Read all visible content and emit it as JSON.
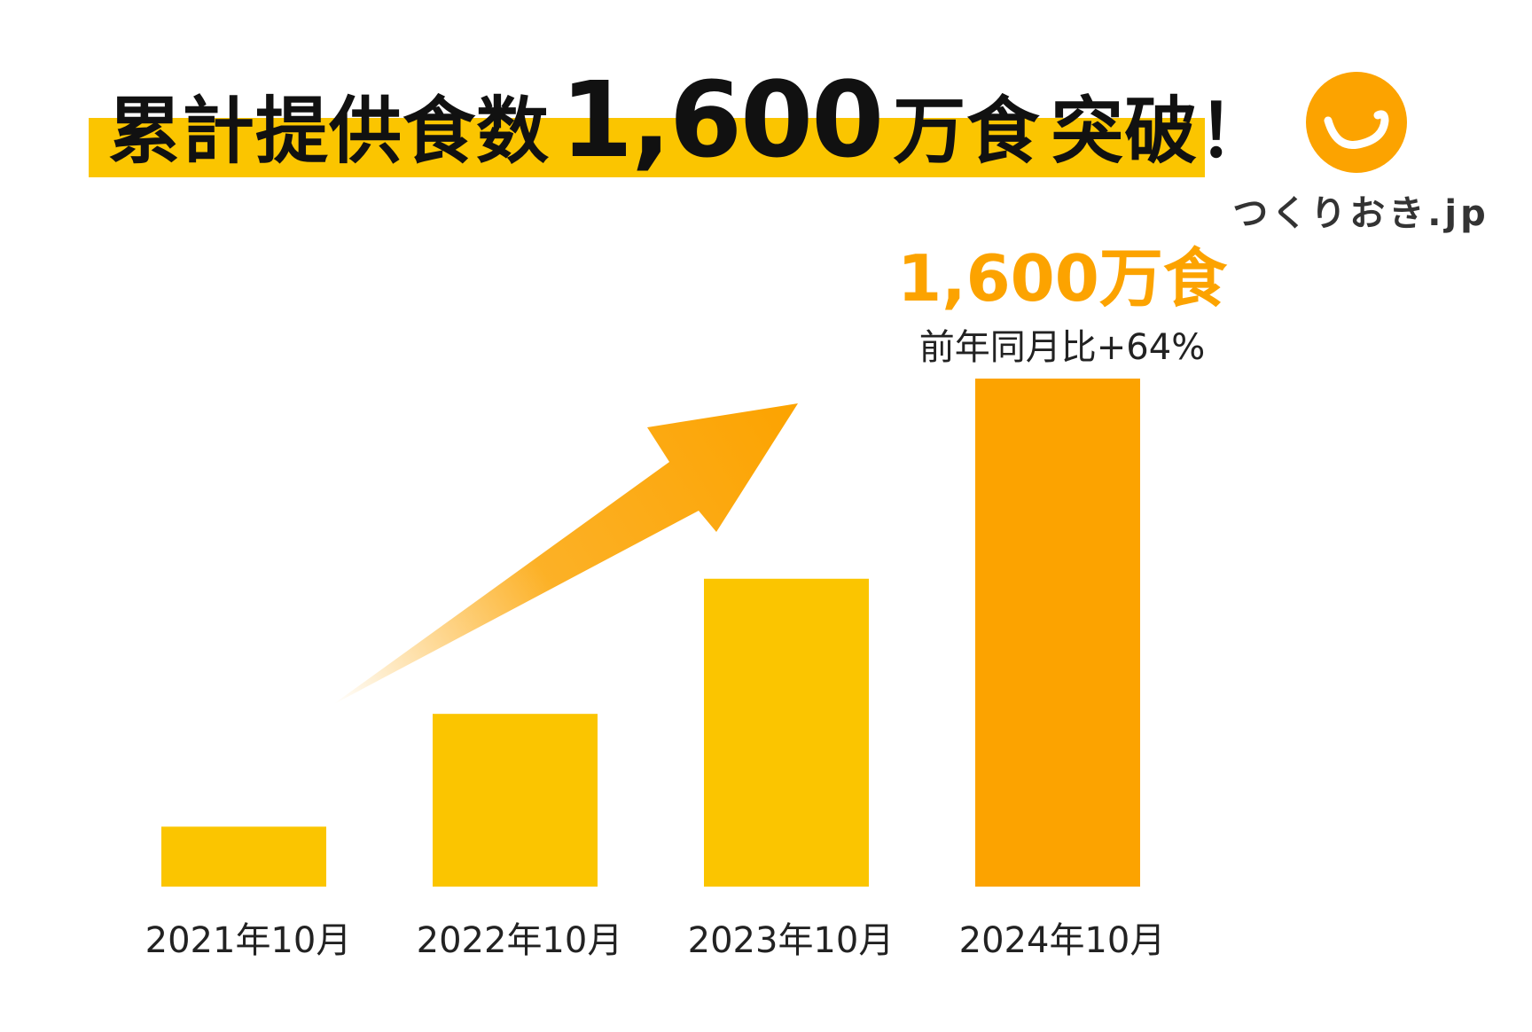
{
  "title": {
    "part1": "累計提供食数",
    "number": "1,600",
    "part2": "万食",
    "part3": "突破！"
  },
  "logo": {
    "text": "つくりおき.jp",
    "icon": "smile-icon",
    "color": "#fca300"
  },
  "highlight": {
    "value": "1,600万食",
    "change": "前年同月比+64%"
  },
  "colors": {
    "bar": "#fbc500",
    "bar_highlight": "#fca300",
    "band": "#fbc500",
    "arrow": "#fca300"
  },
  "chart_data": {
    "type": "bar",
    "categories": [
      "2021年10月",
      "2022年10月",
      "2023年10月",
      "2024年10月"
    ],
    "values": [
      118,
      340,
      606,
      1000
    ],
    "ylim": [
      0,
      1000
    ],
    "grid": false,
    "highlight_index": 3,
    "decoration": "rising-arrow"
  }
}
